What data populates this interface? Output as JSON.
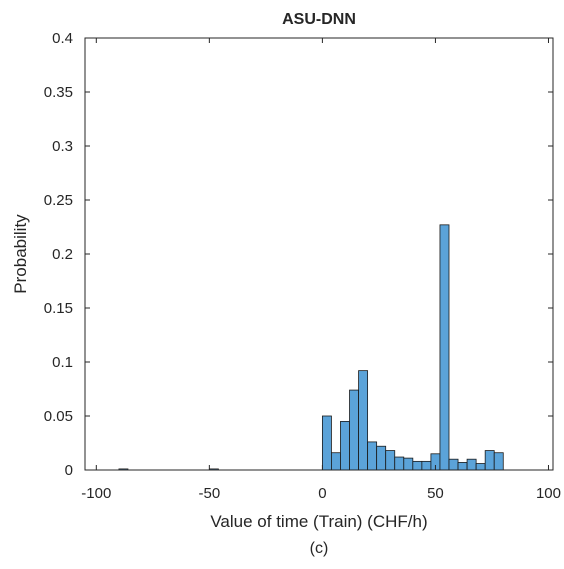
{
  "chart_data": {
    "type": "bar",
    "title": "ASU-DNN",
    "xlabel": "Value of time (Train) (CHF/h)",
    "ylabel": "Probability",
    "caption": "(c)",
    "xlim": [
      -105,
      102
    ],
    "ylim": [
      0,
      0.4
    ],
    "xticks": [
      -100,
      -50,
      0,
      50,
      100
    ],
    "xtick_labels": [
      "-100",
      "-50",
      "0",
      "50",
      "100"
    ],
    "yticks": [
      0,
      0.05,
      0.1,
      0.15,
      0.2,
      0.25,
      0.3,
      0.35,
      0.4
    ],
    "ytick_labels": [
      "0",
      "0.05",
      "0.1",
      "0.15",
      "0.2",
      "0.25",
      "0.3",
      "0.35",
      "0.4"
    ],
    "bin_width": 4,
    "bins": [
      {
        "x0": -90,
        "value": 0.001
      },
      {
        "x0": -50,
        "value": 0.001
      },
      {
        "x0": 0,
        "value": 0.05
      },
      {
        "x0": 4,
        "value": 0.016
      },
      {
        "x0": 8,
        "value": 0.045
      },
      {
        "x0": 12,
        "value": 0.074
      },
      {
        "x0": 16,
        "value": 0.092
      },
      {
        "x0": 20,
        "value": 0.026
      },
      {
        "x0": 24,
        "value": 0.022
      },
      {
        "x0": 28,
        "value": 0.018
      },
      {
        "x0": 32,
        "value": 0.012
      },
      {
        "x0": 36,
        "value": 0.011
      },
      {
        "x0": 40,
        "value": 0.008
      },
      {
        "x0": 44,
        "value": 0.008
      },
      {
        "x0": 48,
        "value": 0.015
      },
      {
        "x0": 52,
        "value": 0.227
      },
      {
        "x0": 56,
        "value": 0.01
      },
      {
        "x0": 60,
        "value": 0.007
      },
      {
        "x0": 64,
        "value": 0.01
      },
      {
        "x0": 68,
        "value": 0.006
      },
      {
        "x0": 72,
        "value": 0.018
      },
      {
        "x0": 76,
        "value": 0.016
      }
    ],
    "bar_color": "#5ba3d9",
    "edge_color": "#1a1a1a",
    "grid": false,
    "box": true
  }
}
